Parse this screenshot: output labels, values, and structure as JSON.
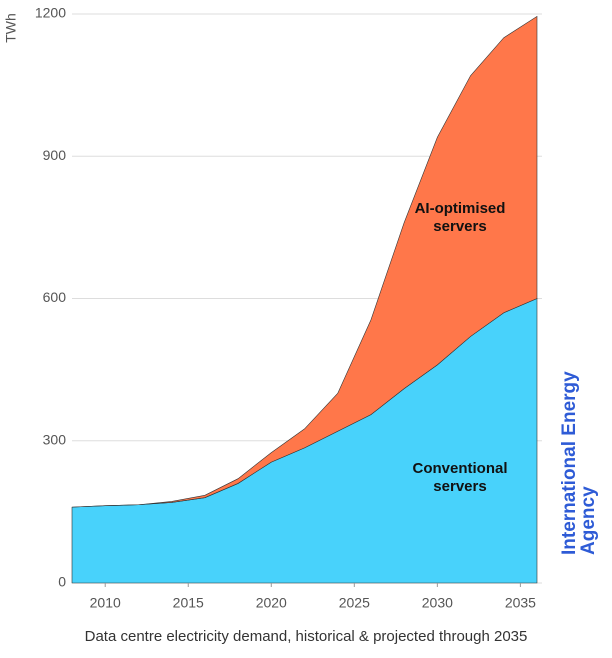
{
  "chart_data": {
    "type": "stacked-area",
    "y_label": "TWh",
    "caption": "Data centre electricity demand, historical & projected through 2035",
    "logo": "International Energy Agency",
    "x": [
      2008,
      2010,
      2012,
      2014,
      2016,
      2018,
      2020,
      2022,
      2024,
      2026,
      2028,
      2030,
      2032,
      2034,
      2036
    ],
    "series": [
      {
        "name": "Conventional servers",
        "color": "#48d2fb",
        "values": [
          160,
          163,
          165,
          170,
          180,
          210,
          255,
          285,
          320,
          355,
          410,
          460,
          520,
          570,
          600
        ]
      },
      {
        "name": "AI-optimised servers",
        "color": "#ff774a",
        "values": [
          0,
          0,
          0,
          2,
          5,
          10,
          20,
          40,
          80,
          200,
          350,
          480,
          550,
          580,
          595
        ]
      }
    ],
    "xlim": [
      2008,
      2036
    ],
    "xticks": [
      2010,
      2015,
      2020,
      2025,
      2030,
      2035
    ],
    "ylim": [
      0,
      1200
    ],
    "yticks": [
      0,
      300,
      600,
      900,
      1200
    ],
    "grid": true
  }
}
